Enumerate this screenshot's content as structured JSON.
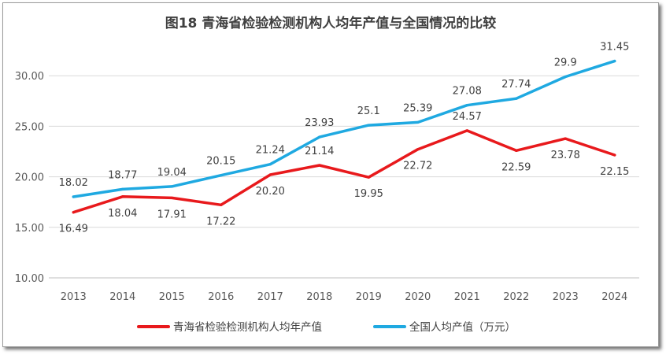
{
  "chart_data": {
    "type": "line",
    "title": "图18   青海省检验检测机构人均年产值与全国情况的比较",
    "categories": [
      "2013",
      "2014",
      "2015",
      "2016",
      "2017",
      "2018",
      "2019",
      "2020",
      "2021",
      "2022",
      "2023",
      "2024"
    ],
    "ylim": [
      10,
      35
    ],
    "yticks": [
      "10.00",
      "15.00",
      "20.00",
      "25.00",
      "30.00"
    ],
    "grid": true,
    "legend_position": "bottom",
    "series": [
      {
        "name": "青海省检验检测机构人均年产值",
        "color": "#e8191c",
        "values": [
          16.49,
          18.04,
          17.91,
          17.22,
          20.2,
          21.14,
          19.95,
          22.72,
          24.57,
          22.59,
          23.78,
          22.15
        ],
        "labels": [
          "16.49",
          "18.04",
          "17.91",
          "17.22",
          "20.20",
          "21.14",
          "19.95",
          "22.72",
          "24.57",
          "22.59",
          "23.78",
          "22.15"
        ]
      },
      {
        "name": "全国人均产值（万元）",
        "color": "#1fa9e1",
        "values": [
          18.02,
          18.77,
          19.04,
          20.15,
          21.24,
          23.93,
          25.1,
          25.39,
          27.08,
          27.74,
          29.9,
          31.45
        ],
        "labels": [
          "18.02",
          "18.77",
          "19.04",
          "20.15",
          "21.24",
          "23.93",
          "25.1",
          "25.39",
          "27.08",
          "27.74",
          "29.9",
          "31.45"
        ]
      }
    ]
  }
}
